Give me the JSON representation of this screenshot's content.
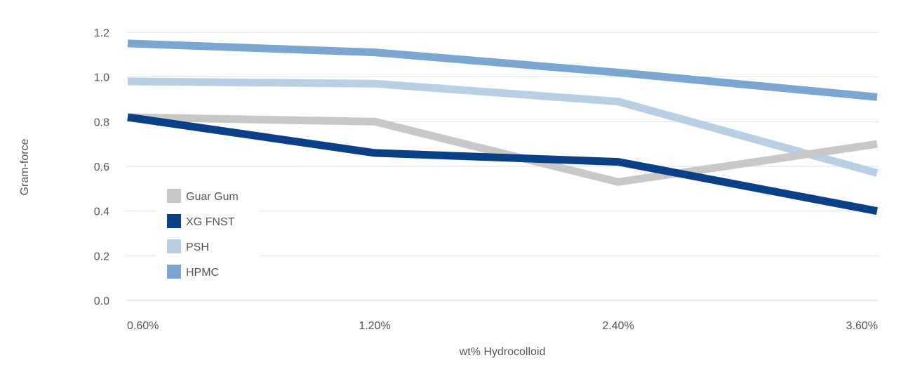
{
  "chart_data": {
    "type": "line",
    "title": "",
    "xlabel": "wt% Hydrocolloid",
    "ylabel": "Gram-force",
    "categories": [
      "0.60%",
      "1.20%",
      "2.40%",
      "3.60%"
    ],
    "ylim": [
      0,
      1.2
    ],
    "yticks": [
      0.0,
      0.2,
      0.4,
      0.6,
      0.8,
      1.0,
      1.2
    ],
    "ytick_labels": [
      "0.0",
      "0.2",
      "0.4",
      "0.6",
      "0.8",
      "1.0",
      "1.2"
    ],
    "grid": true,
    "legend_position": "left",
    "series": [
      {
        "name": "Guar Gum",
        "color": "#c8c8c8",
        "values": [
          0.82,
          0.8,
          0.53,
          0.7
        ]
      },
      {
        "name": "XG FNST",
        "color": "#0b3f86",
        "values": [
          0.82,
          0.66,
          0.62,
          0.4
        ]
      },
      {
        "name": "PSH",
        "color": "#b7d0e6",
        "values": [
          0.98,
          0.97,
          0.89,
          0.57
        ]
      },
      {
        "name": "HPMC",
        "color": "#7aa6d0",
        "values": [
          1.15,
          1.11,
          1.02,
          0.91
        ]
      }
    ],
    "draw_order": [
      "HPMC",
      "PSH",
      "Guar Gum",
      "XG FNST"
    ],
    "colors": {
      "gridline": "#d3e3ee",
      "baseline": "#c3d7e6",
      "text": "#555555"
    }
  }
}
